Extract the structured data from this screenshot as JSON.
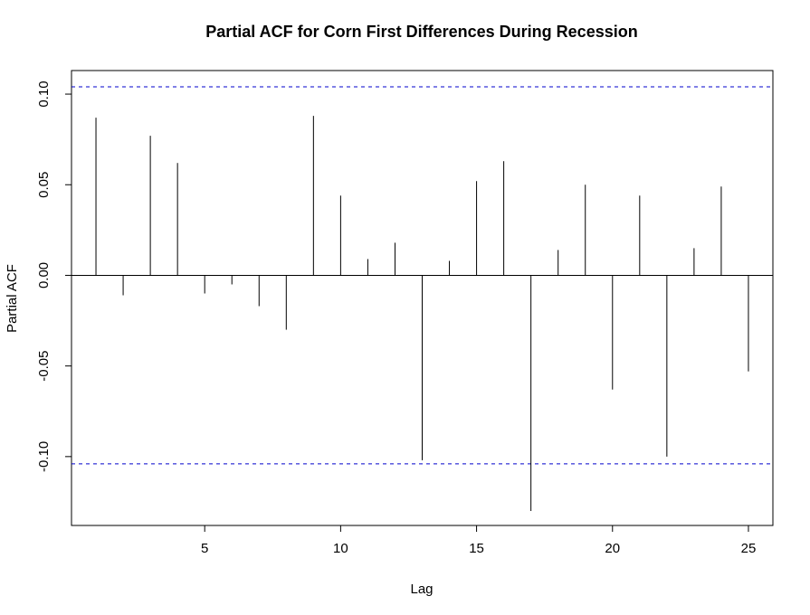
{
  "chart_data": {
    "type": "bar",
    "title": "Partial ACF for Corn First Differences During Recession",
    "xlabel": "Lag",
    "ylabel": "Partial ACF",
    "xlim": [
      0.1,
      25.9
    ],
    "ylim": [
      -0.138,
      0.113
    ],
    "x_ticks": [
      5,
      10,
      15,
      20,
      25
    ],
    "y_ticks": [
      -0.1,
      -0.05,
      0.0,
      0.05,
      0.1
    ],
    "y_tick_labels": [
      "-0.10",
      "-0.05",
      "0.00",
      "0.05",
      "0.10"
    ],
    "x_tick_labels": [
      "5",
      "10",
      "15",
      "20",
      "25"
    ],
    "lags": [
      1,
      2,
      3,
      4,
      5,
      6,
      7,
      8,
      9,
      10,
      11,
      12,
      13,
      14,
      15,
      16,
      17,
      18,
      19,
      20,
      21,
      22,
      23,
      24,
      25
    ],
    "values": [
      0.087,
      -0.011,
      0.077,
      0.062,
      -0.01,
      -0.005,
      -0.017,
      -0.03,
      0.088,
      0.044,
      0.009,
      0.018,
      -0.102,
      0.008,
      0.052,
      0.063,
      -0.13,
      0.014,
      0.05,
      -0.063,
      0.044,
      -0.1,
      0.015,
      0.049,
      -0.053
    ],
    "confidence_bound": 0.104,
    "colors": {
      "bars": "#000000",
      "zero_line": "#000000",
      "confidence_lines": "#0000cc",
      "frame": "#000000"
    },
    "grid": false,
    "legend": "none"
  }
}
